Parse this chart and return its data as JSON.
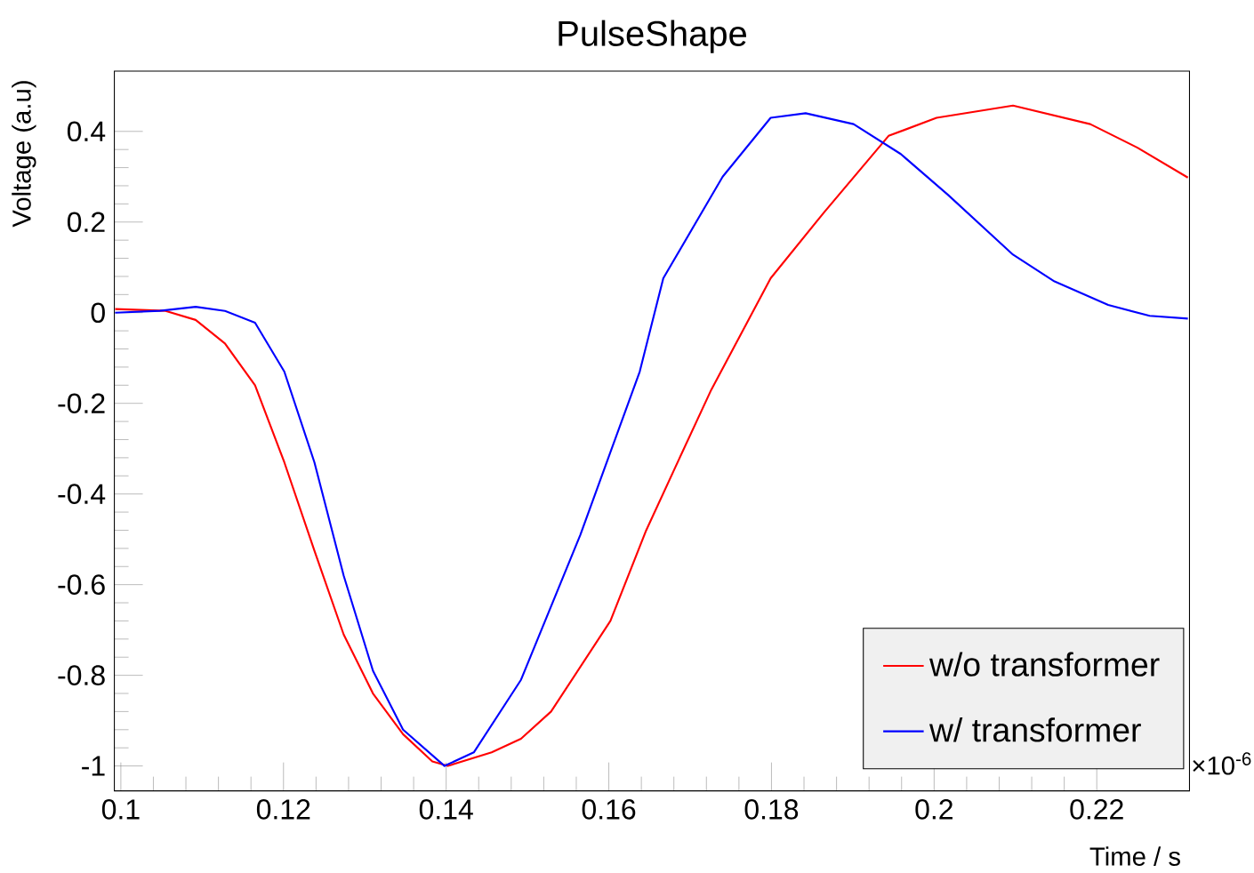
{
  "chart_data": {
    "type": "line",
    "title": "PulseShape",
    "xlabel": "Time / s",
    "ylabel": "Voltage (a.u)",
    "annotations": [
      "×10$^{-6}$"
    ],
    "xlim": [
      0.0992,
      0.2314
    ],
    "ylim": [
      -1.055,
      0.533
    ],
    "xticks": [
      0.1,
      0.12,
      0.14,
      0.16,
      0.18,
      0.2,
      0.22
    ],
    "yticks": [
      -1,
      -0.8,
      -0.6,
      -0.4,
      -0.2,
      0,
      0.2,
      0.4
    ],
    "legend": "bottom right",
    "grid": false,
    "marker": "none",
    "line_style": "solid",
    "series": [
      {
        "name": "w/o transformer",
        "color": "#ff0000",
        "x": [
          0.0993,
          0.1055,
          0.1092,
          0.1128,
          0.1165,
          0.1201,
          0.1238,
          0.1274,
          0.131,
          0.1347,
          0.1383,
          0.1402,
          0.1456,
          0.1492,
          0.1529,
          0.1602,
          0.1646,
          0.1682,
          0.1726,
          0.1799,
          0.1864,
          0.1944,
          0.2003,
          0.2097,
          0.2192,
          0.225,
          0.2312
        ],
        "values": [
          0.008,
          0.004,
          -0.016,
          -0.068,
          -0.16,
          -0.33,
          -0.525,
          -0.71,
          -0.84,
          -0.93,
          -0.99,
          -1.0,
          -0.97,
          -0.94,
          -0.88,
          -0.68,
          -0.48,
          -0.34,
          -0.17,
          0.076,
          0.22,
          0.39,
          0.43,
          0.457,
          0.416,
          0.364,
          0.298
        ]
      },
      {
        "name": "w/ transformer",
        "color": "#0000ff",
        "x": [
          0.0993,
          0.1048,
          0.1092,
          0.1128,
          0.1165,
          0.1201,
          0.1238,
          0.1274,
          0.131,
          0.1347,
          0.1398,
          0.1434,
          0.1492,
          0.1565,
          0.1638,
          0.1667,
          0.174,
          0.1799,
          0.1842,
          0.1901,
          0.1959,
          0.2017,
          0.2097,
          0.2148,
          0.2214,
          0.2265,
          0.2312
        ],
        "values": [
          0.0,
          0.004,
          0.013,
          0.004,
          -0.022,
          -0.13,
          -0.33,
          -0.58,
          -0.79,
          -0.92,
          -1.0,
          -0.97,
          -0.81,
          -0.49,
          -0.13,
          0.076,
          0.3,
          0.43,
          0.44,
          0.416,
          0.35,
          0.26,
          0.128,
          0.069,
          0.017,
          -0.007,
          -0.013
        ]
      }
    ]
  }
}
